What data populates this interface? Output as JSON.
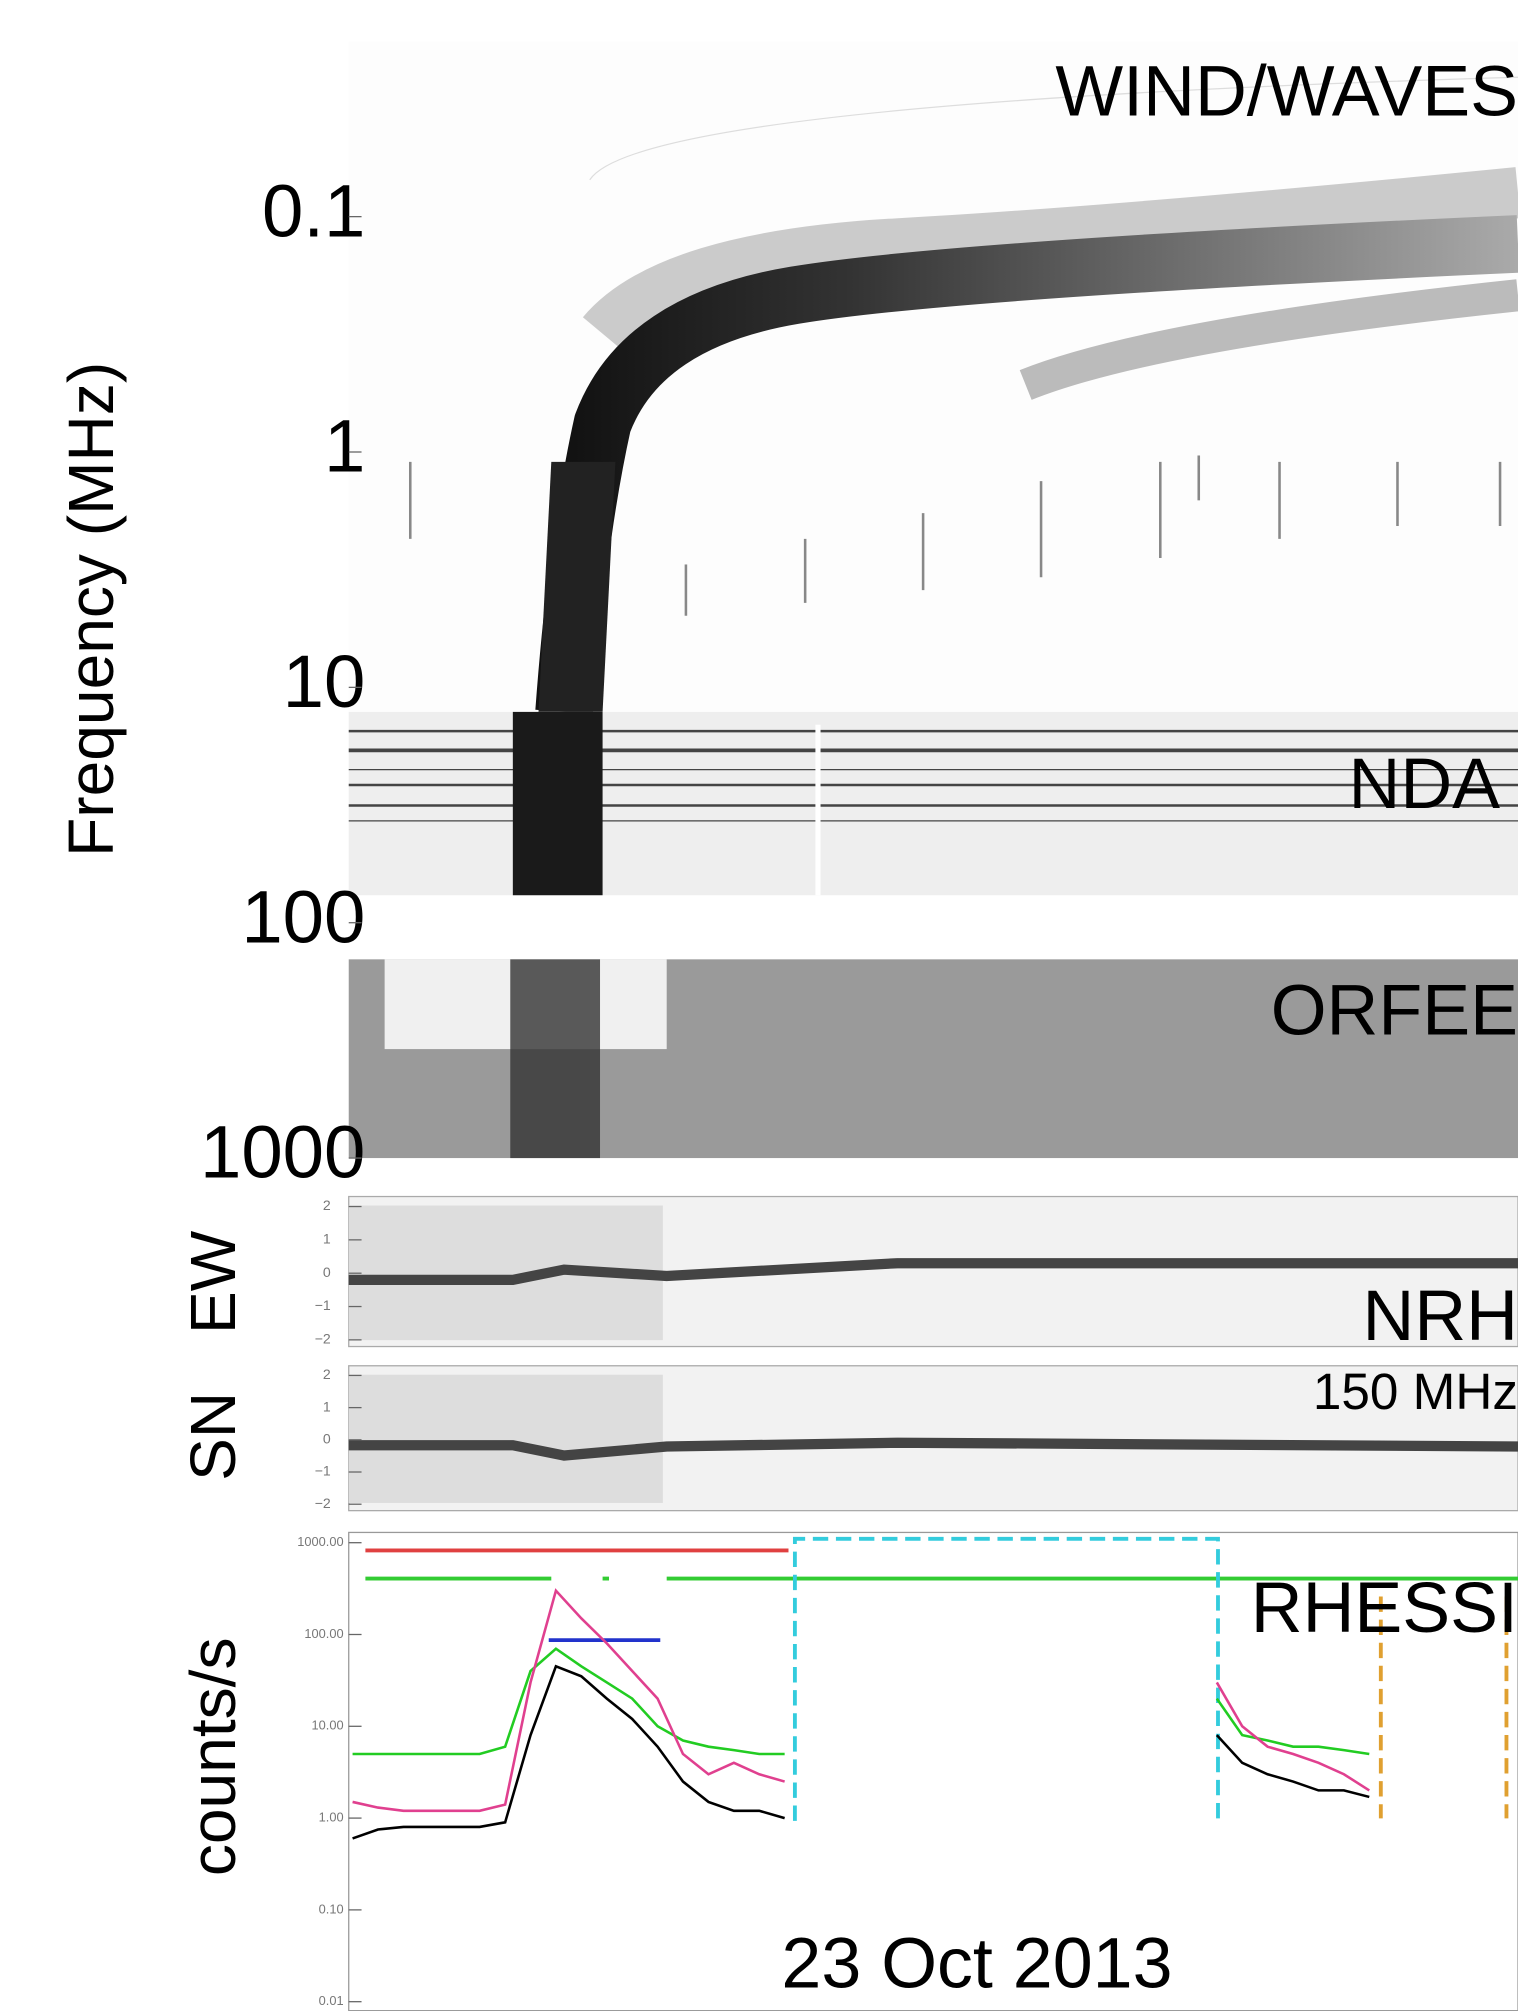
{
  "chart_data": [
    {
      "type": "spectrogram",
      "ylabel": "Frequency (MHz)",
      "labels": [
        "WIND/WAVES",
        "NDA",
        "ORFEE"
      ],
      "log": true,
      "invert": true,
      "ylim": [
        0.018,
        1000
      ],
      "yticks": [
        0.1,
        1,
        10,
        100,
        1000
      ]
    },
    {
      "type": "spectrogram",
      "ylabel": "EW",
      "labels": [
        "NRH"
      ],
      "ylim": [
        -2.2,
        2.3
      ],
      "yticks": [
        2,
        1,
        0,
        {
          "value": -1,
          "label": "−1"
        },
        {
          "value": -2,
          "label": "−2"
        }
      ]
    },
    {
      "type": "spectrogram",
      "ylabel": "SN",
      "labels": [
        "150 MHz"
      ],
      "ylim": [
        -2.2,
        2.3
      ],
      "yticks": [
        2,
        1,
        0,
        {
          "value": -1,
          "label": "−1"
        },
        {
          "value": -2,
          "label": "−2"
        }
      ]
    },
    {
      "type": "line",
      "ylabel": "counts/s",
      "labels": [
        "RHESSI"
      ],
      "xlabel": "23 Oct 2013",
      "log": true,
      "ylim": [
        0.01,
        1000
      ],
      "yticks": [
        {
          "value": 1000,
          "label": "1000.00"
        },
        {
          "value": 100,
          "label": "100.00"
        },
        {
          "value": 10,
          "label": "10.00"
        },
        {
          "value": 1,
          "label": "1.00"
        },
        {
          "value": 0.1,
          "label": "0.10"
        },
        {
          "value": 0.01,
          "label": "0.01"
        }
      ],
      "categories": [
        null,
        null,
        null,
        null,
        null,
        null,
        null,
        null,
        null,
        null,
        null,
        null,
        null,
        null,
        null,
        null,
        null,
        null,
        null,
        null,
        null,
        null,
        null,
        null,
        null,
        null,
        null,
        null,
        null,
        null,
        null,
        null,
        null,
        null,
        null,
        null,
        null,
        null,
        null,
        null,
        null,
        null,
        null,
        null,
        null,
        null
      ],
      "series": [
        {
          "color": "#22cc22",
          "values": [
            5,
            5,
            5,
            5,
            5,
            5,
            6,
            40,
            70,
            45,
            30,
            20,
            10,
            7,
            6,
            5.5,
            5,
            5,
            null,
            null,
            null,
            null,
            null,
            null,
            null,
            null,
            null,
            null,
            null,
            null,
            null,
            null,
            null,
            null,
            20,
            8,
            7,
            6,
            6,
            5.5,
            5,
            null,
            null,
            null,
            null,
            null
          ]
        },
        {
          "color": "#e0408f",
          "values": [
            1.5,
            1.3,
            1.2,
            1.2,
            1.2,
            1.2,
            1.4,
            30,
            300,
            150,
            80,
            40,
            20,
            5,
            3,
            4,
            3,
            2.5,
            null,
            null,
            null,
            null,
            null,
            null,
            null,
            null,
            null,
            null,
            null,
            null,
            null,
            null,
            null,
            null,
            30,
            10,
            6,
            5,
            4,
            3,
            2,
            null,
            null,
            null,
            null,
            null
          ]
        },
        {
          "color": "#000000",
          "values": [
            0.6,
            0.75,
            0.8,
            0.8,
            0.8,
            0.8,
            0.9,
            8,
            45,
            35,
            20,
            12,
            6,
            2.5,
            1.5,
            1.2,
            1.2,
            1,
            null,
            null,
            null,
            null,
            null,
            null,
            null,
            null,
            null,
            null,
            null,
            null,
            null,
            null,
            null,
            null,
            8,
            4,
            3,
            2.5,
            2,
            2,
            1.7,
            null,
            null,
            null,
            null,
            null
          ]
        }
      ]
    }
  ]
}
